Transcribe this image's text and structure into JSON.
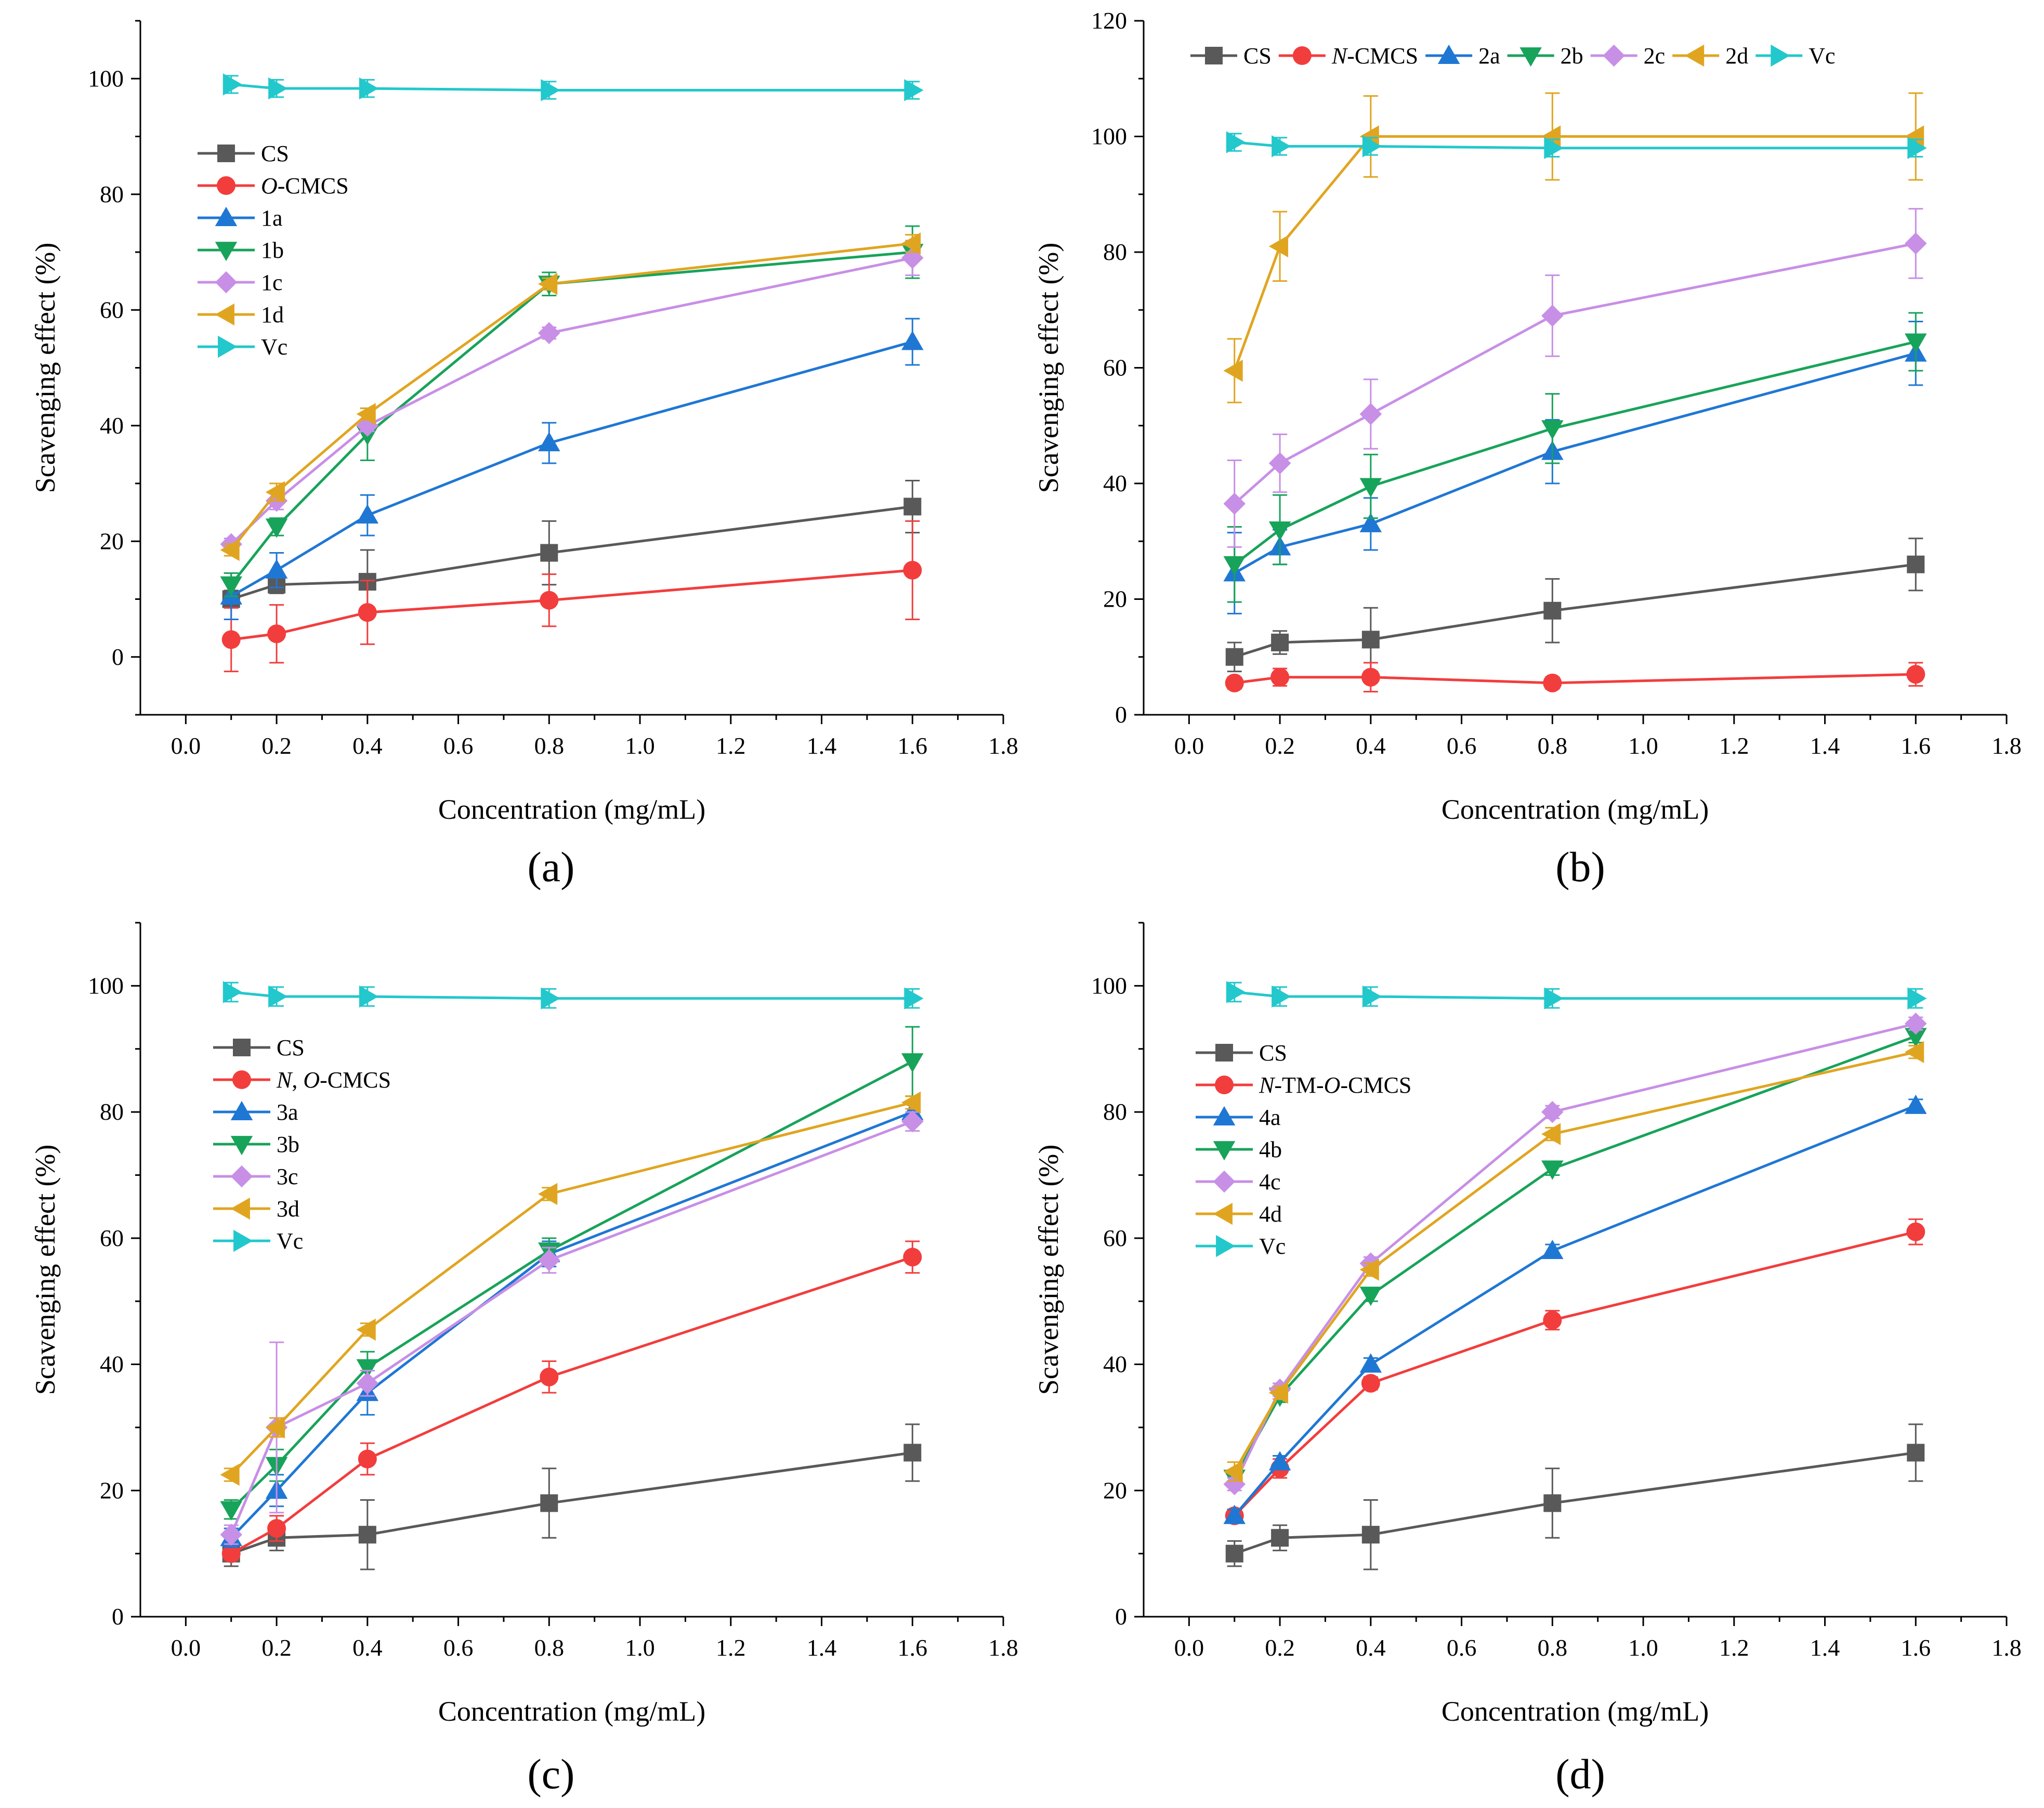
{
  "chart_data": [
    {
      "type": "line",
      "panel_label": "(a)",
      "xlabel": "Concentration (mg/mL)",
      "ylabel": "Scavenging effect (%)",
      "xlim": [
        -0.1,
        1.8
      ],
      "ylim": [
        -10,
        110
      ],
      "xticks": [
        "0.0",
        "0.2",
        "0.4",
        "0.6",
        "0.8",
        "1.0",
        "1.2",
        "1.4",
        "1.6",
        "1.8"
      ],
      "yticks": [
        "0",
        "20",
        "40",
        "60",
        "80",
        "100"
      ],
      "legend_position": "left",
      "legend_layout": "vertical",
      "x": [
        0.1,
        0.2,
        0.4,
        0.8,
        1.6
      ],
      "series": [
        {
          "name": "CS",
          "italic_prefix": "",
          "name_rest": "CS",
          "color": "#595959",
          "marker": "square",
          "values": [
            10,
            12.5,
            13,
            18,
            26
          ],
          "errors": [
            1.5,
            1.5,
            5.5,
            5.5,
            4.5
          ]
        },
        {
          "name": "O-CMCS",
          "italic_prefix": "O",
          "name_rest": "-CMCS",
          "color": "#f23d3d",
          "marker": "circle",
          "values": [
            3,
            4,
            7.7,
            9.8,
            15
          ],
          "errors": [
            5.5,
            5,
            5.5,
            4.5,
            8.5
          ]
        },
        {
          "name": "1a",
          "italic_prefix": "",
          "name_rest": "1a",
          "color": "#1f77d4",
          "marker": "triangle-up",
          "values": [
            10.5,
            15,
            24.5,
            37,
            54.5
          ],
          "errors": [
            4,
            3,
            3.5,
            3.5,
            4
          ]
        },
        {
          "name": "1b",
          "italic_prefix": "",
          "name_rest": "1b",
          "color": "#18a35a",
          "marker": "triangle-down",
          "values": [
            12.5,
            22.5,
            38.5,
            64.5,
            70
          ],
          "errors": [
            2,
            1.5,
            4.5,
            2,
            4.5
          ]
        },
        {
          "name": "1c",
          "italic_prefix": "",
          "name_rest": "1c",
          "color": "#c88fe6",
          "marker": "diamond",
          "values": [
            19.5,
            27,
            40,
            56,
            69
          ],
          "errors": [
            1,
            1.5,
            1,
            1,
            3
          ]
        },
        {
          "name": "1d",
          "italic_prefix": "",
          "name_rest": "1d",
          "color": "#e0a520",
          "marker": "triangle-left",
          "values": [
            18.5,
            28.5,
            42,
            64.5,
            71.5
          ],
          "errors": [
            1,
            1.5,
            1,
            1,
            1.5
          ]
        },
        {
          "name": "Vc",
          "italic_prefix": "",
          "name_rest": "Vc",
          "color": "#22c8cc",
          "marker": "triangle-right",
          "values": [
            99,
            98.3,
            98.3,
            98,
            98
          ],
          "errors": [
            1.5,
            1.5,
            1.5,
            1.5,
            1.5
          ]
        }
      ]
    },
    {
      "type": "line",
      "panel_label": "(b)",
      "xlabel": "Concentration (mg/mL)",
      "ylabel": "Scavenging effect (%)",
      "xlim": [
        -0.1,
        1.8
      ],
      "ylim": [
        0,
        120
      ],
      "xticks": [
        "0.0",
        "0.2",
        "0.4",
        "0.6",
        "0.8",
        "1.0",
        "1.2",
        "1.4",
        "1.6",
        "1.8"
      ],
      "yticks": [
        "0",
        "20",
        "40",
        "60",
        "80",
        "100",
        "120"
      ],
      "legend_position": "top",
      "legend_layout": "horizontal",
      "x": [
        0.1,
        0.2,
        0.4,
        0.8,
        1.6
      ],
      "series": [
        {
          "name": "CS",
          "italic_prefix": "",
          "name_rest": "CS",
          "color": "#595959",
          "marker": "square",
          "values": [
            10,
            12.5,
            13,
            18,
            26
          ],
          "errors": [
            2.5,
            2,
            5.5,
            5.5,
            4.5
          ]
        },
        {
          "name": "N-CMCS",
          "italic_prefix": "N",
          "name_rest": "-CMCS",
          "color": "#f23d3d",
          "marker": "circle",
          "values": [
            5.5,
            6.5,
            6.5,
            5.5,
            7
          ],
          "errors": [
            1,
            1.5,
            2.5,
            1,
            2
          ]
        },
        {
          "name": "2a",
          "italic_prefix": "",
          "name_rest": "2a",
          "color": "#1f77d4",
          "marker": "triangle-up",
          "values": [
            24.5,
            29,
            33,
            45.5,
            62.5
          ],
          "errors": [
            7,
            3,
            4.5,
            5.5,
            5.5
          ]
        },
        {
          "name": "2b",
          "italic_prefix": "",
          "name_rest": "2b",
          "color": "#18a35a",
          "marker": "triangle-down",
          "values": [
            26,
            32,
            39.5,
            49.5,
            64.5
          ],
          "errors": [
            6.5,
            6,
            5.5,
            6,
            5
          ]
        },
        {
          "name": "2c",
          "italic_prefix": "",
          "name_rest": "2c",
          "color": "#c88fe6",
          "marker": "diamond",
          "values": [
            36.5,
            43.5,
            52,
            69,
            81.5
          ],
          "errors": [
            7.5,
            5,
            6,
            7,
            6
          ]
        },
        {
          "name": "2d",
          "italic_prefix": "",
          "name_rest": "2d",
          "color": "#e0a520",
          "marker": "triangle-left",
          "values": [
            59.5,
            81,
            100,
            100,
            100
          ],
          "errors": [
            5.5,
            6,
            7,
            7.5,
            7.5
          ]
        },
        {
          "name": "Vc",
          "italic_prefix": "",
          "name_rest": "Vc",
          "color": "#22c8cc",
          "marker": "triangle-right",
          "values": [
            99,
            98.3,
            98.3,
            98,
            98
          ],
          "errors": [
            1.5,
            1.5,
            1.5,
            1.5,
            1.5
          ]
        }
      ]
    },
    {
      "type": "line",
      "panel_label": "(c)",
      "xlabel": "Concentration (mg/mL)",
      "ylabel": "Scavenging effect (%)",
      "xlim": [
        -0.1,
        1.8
      ],
      "ylim": [
        0,
        110
      ],
      "xticks": [
        "0.0",
        "0.2",
        "0.4",
        "0.6",
        "0.8",
        "1.0",
        "1.2",
        "1.4",
        "1.6",
        "1.8"
      ],
      "yticks": [
        "0",
        "20",
        "40",
        "60",
        "80",
        "100"
      ],
      "legend_position": "left",
      "legend_layout": "vertical",
      "x": [
        0.1,
        0.2,
        0.4,
        0.8,
        1.6
      ],
      "series": [
        {
          "name": "CS",
          "italic_prefix": "",
          "name_rest": "CS",
          "color": "#595959",
          "marker": "square",
          "values": [
            10,
            12.5,
            13,
            18,
            26
          ],
          "errors": [
            2,
            2,
            5.5,
            5.5,
            4.5
          ]
        },
        {
          "name": "N, O-CMCS",
          "italic_prefix": "N",
          "name_rest": ", O-CMCS",
          "color": "#f23d3d",
          "marker": "circle",
          "values": [
            10,
            14,
            25,
            38,
            57
          ],
          "errors": [
            1,
            2,
            2.5,
            2.5,
            2.5
          ]
        },
        {
          "name": "3a",
          "italic_prefix": "",
          "name_rest": "3a",
          "color": "#1f77d4",
          "marker": "triangle-up",
          "values": [
            12.5,
            20,
            35.5,
            57.5,
            80
          ],
          "errors": [
            1.5,
            2.5,
            3.5,
            2,
            1.5
          ]
        },
        {
          "name": "3b",
          "italic_prefix": "",
          "name_rest": "3b",
          "color": "#18a35a",
          "marker": "triangle-down",
          "values": [
            17,
            24,
            39.5,
            58,
            88
          ],
          "errors": [
            1.5,
            2.5,
            2.5,
            2,
            5.5
          ]
        },
        {
          "name": "3c",
          "italic_prefix": "",
          "name_rest": "3c",
          "color": "#c88fe6",
          "marker": "diamond",
          "values": [
            13,
            30,
            37,
            56.5,
            78.5
          ],
          "errors": [
            1.5,
            13.5,
            2,
            2,
            1.5
          ]
        },
        {
          "name": "3d",
          "italic_prefix": "",
          "name_rest": "3d",
          "color": "#e0a520",
          "marker": "triangle-left",
          "values": [
            22.5,
            30,
            45.5,
            67,
            81.5
          ],
          "errors": [
            1,
            1.5,
            1,
            1,
            1
          ]
        },
        {
          "name": "Vc",
          "italic_prefix": "",
          "name_rest": "Vc",
          "color": "#22c8cc",
          "marker": "triangle-right",
          "values": [
            99,
            98.3,
            98.3,
            98,
            98
          ],
          "errors": [
            1.5,
            1.5,
            1.5,
            1.5,
            1.5
          ]
        }
      ]
    },
    {
      "type": "line",
      "panel_label": "(d)",
      "xlabel": "Concentration (mg/mL)",
      "ylabel": "Scavenging effect (%)",
      "xlim": [
        -0.1,
        1.8
      ],
      "ylim": [
        0,
        110
      ],
      "xticks": [
        "0.0",
        "0.2",
        "0.4",
        "0.6",
        "0.8",
        "1.0",
        "1.2",
        "1.4",
        "1.6",
        "1.8"
      ],
      "yticks": [
        "0",
        "20",
        "40",
        "60",
        "80",
        "100"
      ],
      "legend_position": "left",
      "legend_layout": "vertical",
      "x": [
        0.1,
        0.2,
        0.4,
        0.8,
        1.6
      ],
      "series": [
        {
          "name": "CS",
          "italic_prefix": "",
          "name_rest": "CS",
          "color": "#595959",
          "marker": "square",
          "values": [
            10,
            12.5,
            13,
            18,
            26
          ],
          "errors": [
            2,
            2,
            5.5,
            5.5,
            4.5
          ]
        },
        {
          "name": "N-TM-O-CMCS",
          "italic_prefix": "N",
          "name_rest": "-TM-O-CMCS",
          "color": "#f23d3d",
          "marker": "circle",
          "values": [
            16,
            23.5,
            37,
            47,
            61
          ],
          "errors": [
            1,
            1.5,
            1,
            1.5,
            2
          ]
        },
        {
          "name": "4a",
          "italic_prefix": "",
          "name_rest": "4a",
          "color": "#1f77d4",
          "marker": "triangle-up",
          "values": [
            16,
            24.5,
            40,
            58,
            81
          ],
          "errors": [
            1,
            1,
            1,
            1,
            1
          ]
        },
        {
          "name": "4b",
          "italic_prefix": "",
          "name_rest": "4b",
          "color": "#18a35a",
          "marker": "triangle-down",
          "values": [
            22,
            35,
            51,
            71,
            92
          ],
          "errors": [
            1,
            1,
            1,
            1,
            1
          ]
        },
        {
          "name": "4c",
          "italic_prefix": "",
          "name_rest": "4c",
          "color": "#c88fe6",
          "marker": "diamond",
          "values": [
            21,
            36,
            56,
            80,
            94
          ],
          "errors": [
            1,
            1,
            1,
            1,
            1
          ]
        },
        {
          "name": "4d",
          "italic_prefix": "",
          "name_rest": "4d",
          "color": "#e0a520",
          "marker": "triangle-left",
          "values": [
            23,
            35.5,
            55,
            76.5,
            89.5
          ],
          "errors": [
            1.5,
            1,
            1,
            1,
            1
          ]
        },
        {
          "name": "Vc",
          "italic_prefix": "",
          "name_rest": "Vc",
          "color": "#22c8cc",
          "marker": "triangle-right",
          "values": [
            99,
            98.3,
            98.3,
            98,
            98
          ],
          "errors": [
            1.5,
            1.5,
            1.5,
            1.5,
            1.5
          ]
        }
      ]
    }
  ]
}
